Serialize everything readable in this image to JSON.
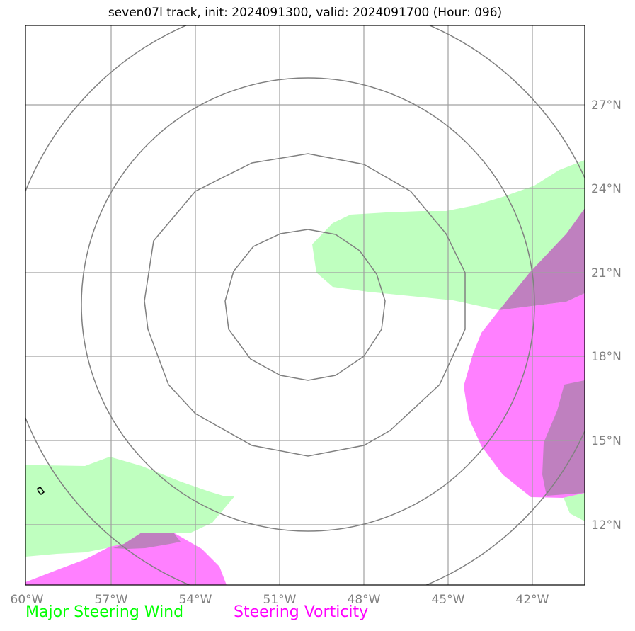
{
  "title": "seven07l track, init: 2024091300, valid: 2024091700 (Hour: 096)",
  "lon_ticks": [
    "60°W",
    "57°W",
    "54°W",
    "51°W",
    "48°W",
    "45°W",
    "42°W"
  ],
  "lat_ticks": [
    "27°N",
    "24°N",
    "21°N",
    "18°N",
    "15°N",
    "12°N"
  ],
  "legend": {
    "wind": "Major Steering Wind",
    "vorticity": "Steering Vorticity"
  },
  "colors": {
    "wind": "#00ff00",
    "wind_fill": "#bfffbf",
    "vorticity": "#ff00ff",
    "vorticity_fill": "#ff80ff",
    "overlap_fill": "#bf80bf",
    "grid": "#a0a0a0",
    "rings": "#808080"
  }
}
